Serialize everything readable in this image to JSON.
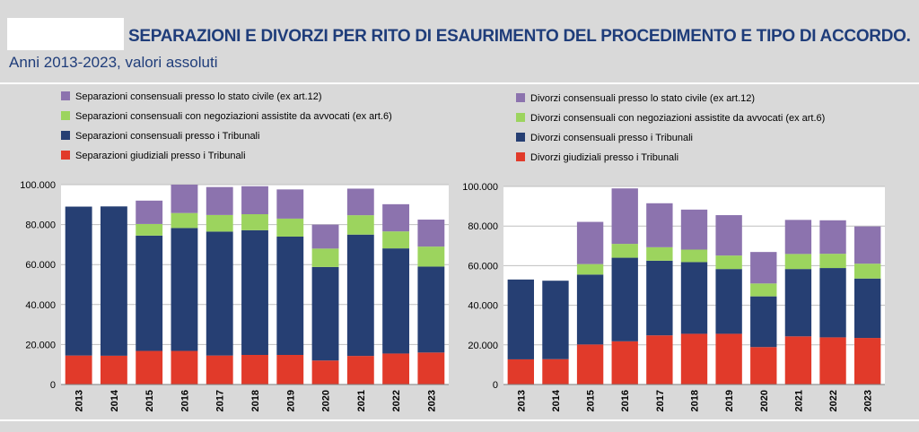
{
  "header": {
    "title": "SEPARAZIONI E DIVORZI PER RITO DI ESAURIMENTO DEL PROCEDIMENTO E TIPO DI ACCORDO.",
    "subtitle": "Anni 2013-2023, valori assoluti"
  },
  "colors": {
    "background": "#d9d9d9",
    "title": "#1f3d7a",
    "stato_civile": "#8c73ae",
    "negoziazioni": "#9cd45e",
    "tribunali_consensuali": "#263f73",
    "giudiziali": "#e13a2a"
  },
  "chart_data": [
    {
      "type": "bar",
      "stacked": true,
      "categories": [
        "2013",
        "2014",
        "2015",
        "2016",
        "2017",
        "2018",
        "2019",
        "2020",
        "2021",
        "2022",
        "2023"
      ],
      "ylim": [
        0,
        100000
      ],
      "yticks": [
        "0",
        "20.000",
        "40.000",
        "60.000",
        "80.000",
        "100.000"
      ],
      "grid": true,
      "legend_position": "top",
      "series": [
        {
          "name": "Separazioni giudiziali presso i Tribunali",
          "color": "#e13a2a",
          "values": [
            14500,
            14400,
            16800,
            16800,
            14500,
            14800,
            14800,
            12000,
            14300,
            15500,
            16000
          ]
        },
        {
          "name": "Separazioni consensuali presso i Tribunali",
          "color": "#263f73",
          "values": [
            74500,
            74700,
            57700,
            61500,
            62000,
            62400,
            59200,
            46800,
            60700,
            52600,
            43000
          ]
        },
        {
          "name": "Separazioni consensuali con negoziazioni assistite da avvocati (ex art.6)",
          "color": "#9cd45e",
          "values": [
            0,
            0,
            5800,
            7500,
            8300,
            8000,
            9000,
            9200,
            9700,
            8500,
            10000
          ]
        },
        {
          "name": "Separazioni consensuali presso lo stato civile (ex art.12)",
          "color": "#8c73ae",
          "values": [
            0,
            0,
            11700,
            14200,
            14000,
            14000,
            14600,
            12000,
            13300,
            13600,
            13500
          ]
        }
      ],
      "legend_order": [
        "Separazioni consensuali presso lo stato civile (ex art.12)",
        "Separazioni consensuali con negoziazioni assistite da avvocati (ex art.6)",
        "Separazioni consensuali presso i Tribunali",
        "Separazioni giudiziali presso i Tribunali"
      ]
    },
    {
      "type": "bar",
      "stacked": true,
      "categories": [
        "2013",
        "2014",
        "2015",
        "2016",
        "2017",
        "2018",
        "2019",
        "2020",
        "2021",
        "2022",
        "2023"
      ],
      "ylim": [
        0,
        100000
      ],
      "yticks": [
        "0",
        "20.000",
        "40.000",
        "60.000",
        "80.000",
        "100.000"
      ],
      "grid": true,
      "legend_position": "top",
      "series": [
        {
          "name": "Divorzi giudiziali presso i Tribunali",
          "color": "#e13a2a",
          "values": [
            12700,
            12800,
            20200,
            21800,
            24800,
            25600,
            25600,
            18900,
            24300,
            23800,
            23500
          ]
        },
        {
          "name": "Divorzi  consensuali presso i Tribunali",
          "color": "#263f73",
          "values": [
            40300,
            39600,
            35300,
            42200,
            37700,
            36200,
            32700,
            25600,
            34000,
            35000,
            30000
          ]
        },
        {
          "name": "Divorzi  consensuali con negoziazioni assistite da avvocati (ex art.6)",
          "color": "#9cd45e",
          "values": [
            0,
            0,
            5300,
            7000,
            6800,
            6300,
            6800,
            6500,
            7600,
            7200,
            7500
          ]
        },
        {
          "name": "Divorzi  consensuali presso lo stato civile (ex art.12)",
          "color": "#8c73ae",
          "values": [
            0,
            0,
            21300,
            28000,
            22200,
            20200,
            20400,
            15900,
            17200,
            16900,
            18800
          ]
        }
      ],
      "legend_order": [
        "Divorzi  consensuali presso lo stato civile (ex art.12)",
        "Divorzi  consensuali con negoziazioni assistite da avvocati (ex art.6)",
        "Divorzi  consensuali presso i Tribunali",
        "Divorzi giudiziali presso i Tribunali"
      ]
    }
  ]
}
